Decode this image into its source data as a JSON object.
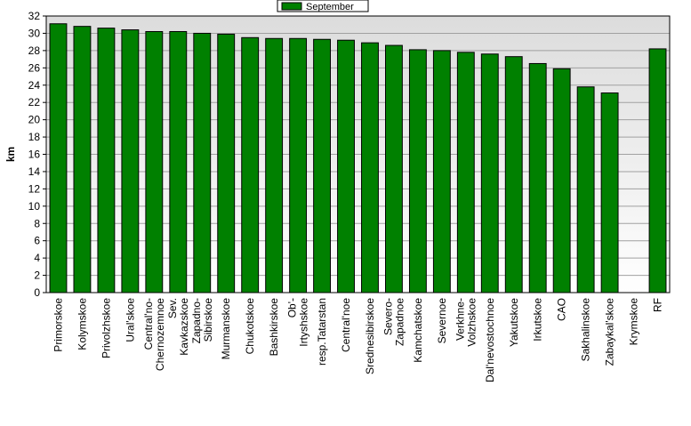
{
  "chart_data": {
    "type": "bar",
    "title": "",
    "xlabel": "",
    "ylabel": "km",
    "ylim": [
      0,
      32
    ],
    "ytick_step": 2,
    "grid": true,
    "legend_position": "top-center",
    "series": [
      {
        "name": "September",
        "color": "#008000",
        "values": [
          31.1,
          30.8,
          30.6,
          30.4,
          30.2,
          30.2,
          30.0,
          29.9,
          29.5,
          29.4,
          29.4,
          29.3,
          29.2,
          28.9,
          28.6,
          28.1,
          28.0,
          27.8,
          27.6,
          27.3,
          26.5,
          25.9,
          23.8,
          23.1,
          0,
          28.2
        ]
      }
    ],
    "categories": [
      "Primorskoe",
      "Kolymskoe",
      "Privolzhskoe",
      "Ural'skoe",
      "Central'no-\nChernozemnoe",
      "Sev.\nKavkazskoe",
      "Zapadno-\nSibirskoe",
      "Murmanskoe",
      "Chukotskoe",
      "Bashkirskoe",
      "Ob'-\nIrtyshskoe",
      "resp.Tatarstan",
      "Central'noe",
      "Srednesibirskoe",
      "Severo-\nZapadnoe",
      "Kamchatskoe",
      "Severnoe",
      "Verkhne-\nVolzhskoe",
      "Dal'nevostochnoe",
      "Yakutskoe",
      "Irkutskoe",
      "CAO",
      "Sakhalinskoe",
      "Zabaykal'skoe",
      "Krymskoe",
      "RF"
    ]
  }
}
